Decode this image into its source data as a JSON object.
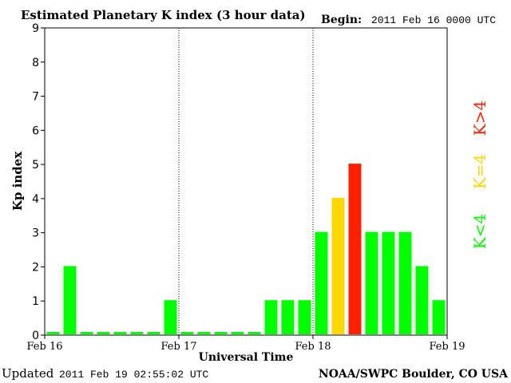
{
  "header": {
    "title": "Estimated Planetary K index (3 hour data)",
    "begin_label": "Begin:",
    "begin_value": "2011 Feb 16 0000 UTC"
  },
  "footer": {
    "updated_label": "Updated",
    "updated_value": "2011 Feb 19 02:55:02 UTC",
    "source": "NOAA/SWPC Boulder, CO USA"
  },
  "legend": [
    {
      "label": "K<4",
      "color": "#00ff00"
    },
    {
      "label": "K=4",
      "color": "#ffd700"
    },
    {
      "label": "K>4",
      "color": "#ff2000"
    }
  ],
  "chart_data": {
    "type": "bar",
    "xlabel": "Universal Time",
    "ylabel": "Kp index",
    "ylim": [
      0,
      9
    ],
    "yticks": [
      0,
      1,
      2,
      3,
      4,
      5,
      6,
      7,
      8,
      9
    ],
    "xticks": [
      "Feb 16",
      "Feb 17",
      "Feb 18",
      "Feb 19"
    ],
    "grid": "dotted vertical lines at day boundaries",
    "legend_position": "right",
    "values": [
      0,
      2,
      0,
      0,
      0,
      0,
      0,
      1,
      0,
      0,
      0,
      0,
      0,
      1,
      1,
      1,
      3,
      4,
      5,
      3,
      3,
      3,
      2,
      1
    ],
    "colors": {
      "below4": "#00ff00",
      "equal4": "#ffd700",
      "above4": "#ff2000"
    }
  }
}
